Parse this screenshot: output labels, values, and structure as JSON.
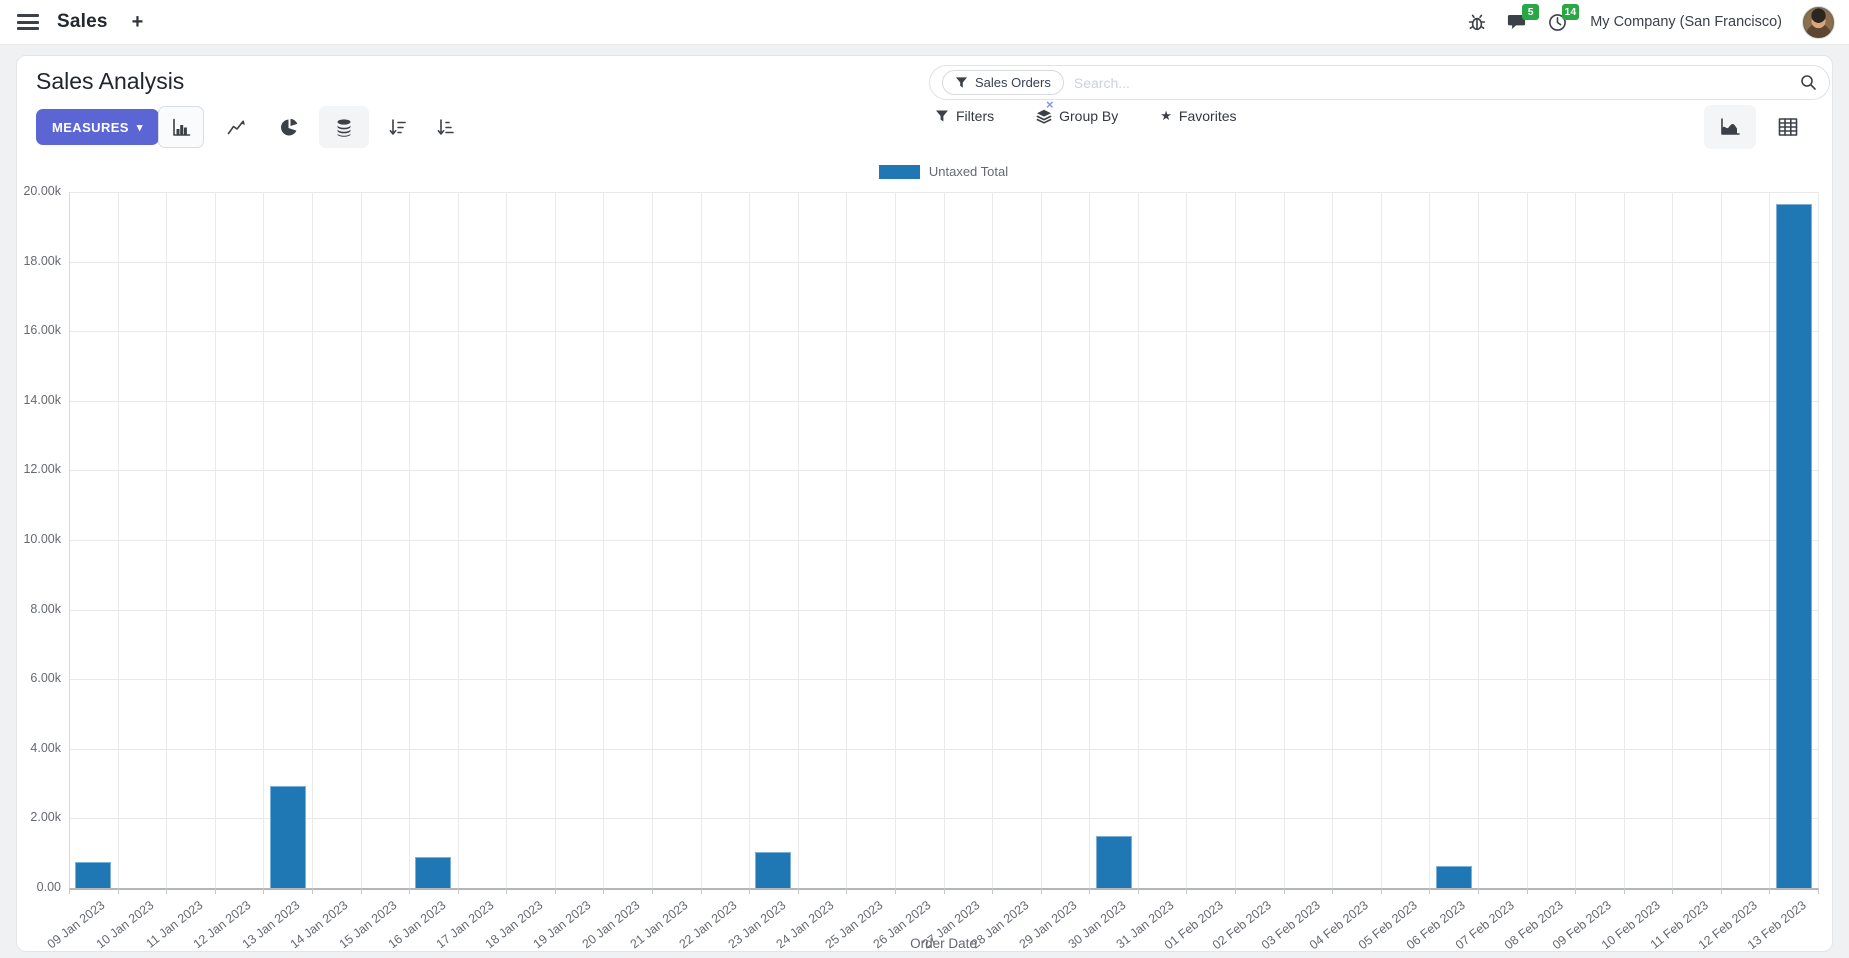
{
  "header": {
    "app_name": "Sales",
    "plus_label": "+",
    "message_badge": "5",
    "activity_badge": "14",
    "company": "My Company (San Francisco)"
  },
  "control_panel": {
    "title": "Sales Analysis",
    "measures_label": "MEASURES",
    "search": {
      "facet_label": "Sales Orders",
      "placeholder": "Search...",
      "remove_facet": "×"
    },
    "filters_label": "Filters",
    "group_by_label": "Group By",
    "favorites_label": "Favorites"
  },
  "icons": {
    "caret_down": "▾",
    "star": "★"
  },
  "colors": {
    "accent": "#5b66d4",
    "bar_fill": "#1f77b4",
    "badge_green": "#28a745"
  },
  "chart_data": {
    "type": "bar",
    "title": "",
    "legend_position": "top",
    "grid": true,
    "xlabel": "Order Date",
    "ylabel": "",
    "ylim": [
      0,
      20000
    ],
    "ytick_step": 2000,
    "ytick_labels": [
      "0.00",
      "2.00k",
      "4.00k",
      "6.00k",
      "8.00k",
      "10.00k",
      "12.00k",
      "14.00k",
      "16.00k",
      "18.00k",
      "20.00k"
    ],
    "categories": [
      "09 Jan 2023",
      "10 Jan 2023",
      "11 Jan 2023",
      "12 Jan 2023",
      "13 Jan 2023",
      "14 Jan 2023",
      "15 Jan 2023",
      "16 Jan 2023",
      "17 Jan 2023",
      "18 Jan 2023",
      "19 Jan 2023",
      "20 Jan 2023",
      "21 Jan 2023",
      "22 Jan 2023",
      "23 Jan 2023",
      "24 Jan 2023",
      "25 Jan 2023",
      "26 Jan 2023",
      "27 Jan 2023",
      "28 Jan 2023",
      "29 Jan 2023",
      "30 Jan 2023",
      "31 Jan 2023",
      "01 Feb 2023",
      "02 Feb 2023",
      "03 Feb 2023",
      "04 Feb 2023",
      "05 Feb 2023",
      "06 Feb 2023",
      "07 Feb 2023",
      "08 Feb 2023",
      "09 Feb 2023",
      "10 Feb 2023",
      "11 Feb 2023",
      "12 Feb 2023",
      "13 Feb 2023"
    ],
    "series": [
      {
        "name": "Untaxed Total",
        "color": "#1f77b4",
        "values": [
          760,
          0,
          0,
          0,
          2920,
          0,
          0,
          880,
          0,
          0,
          0,
          0,
          0,
          0,
          1030,
          0,
          0,
          0,
          0,
          0,
          0,
          1490,
          0,
          0,
          0,
          0,
          0,
          0,
          620,
          0,
          0,
          0,
          0,
          0,
          0,
          19650
        ]
      }
    ]
  }
}
